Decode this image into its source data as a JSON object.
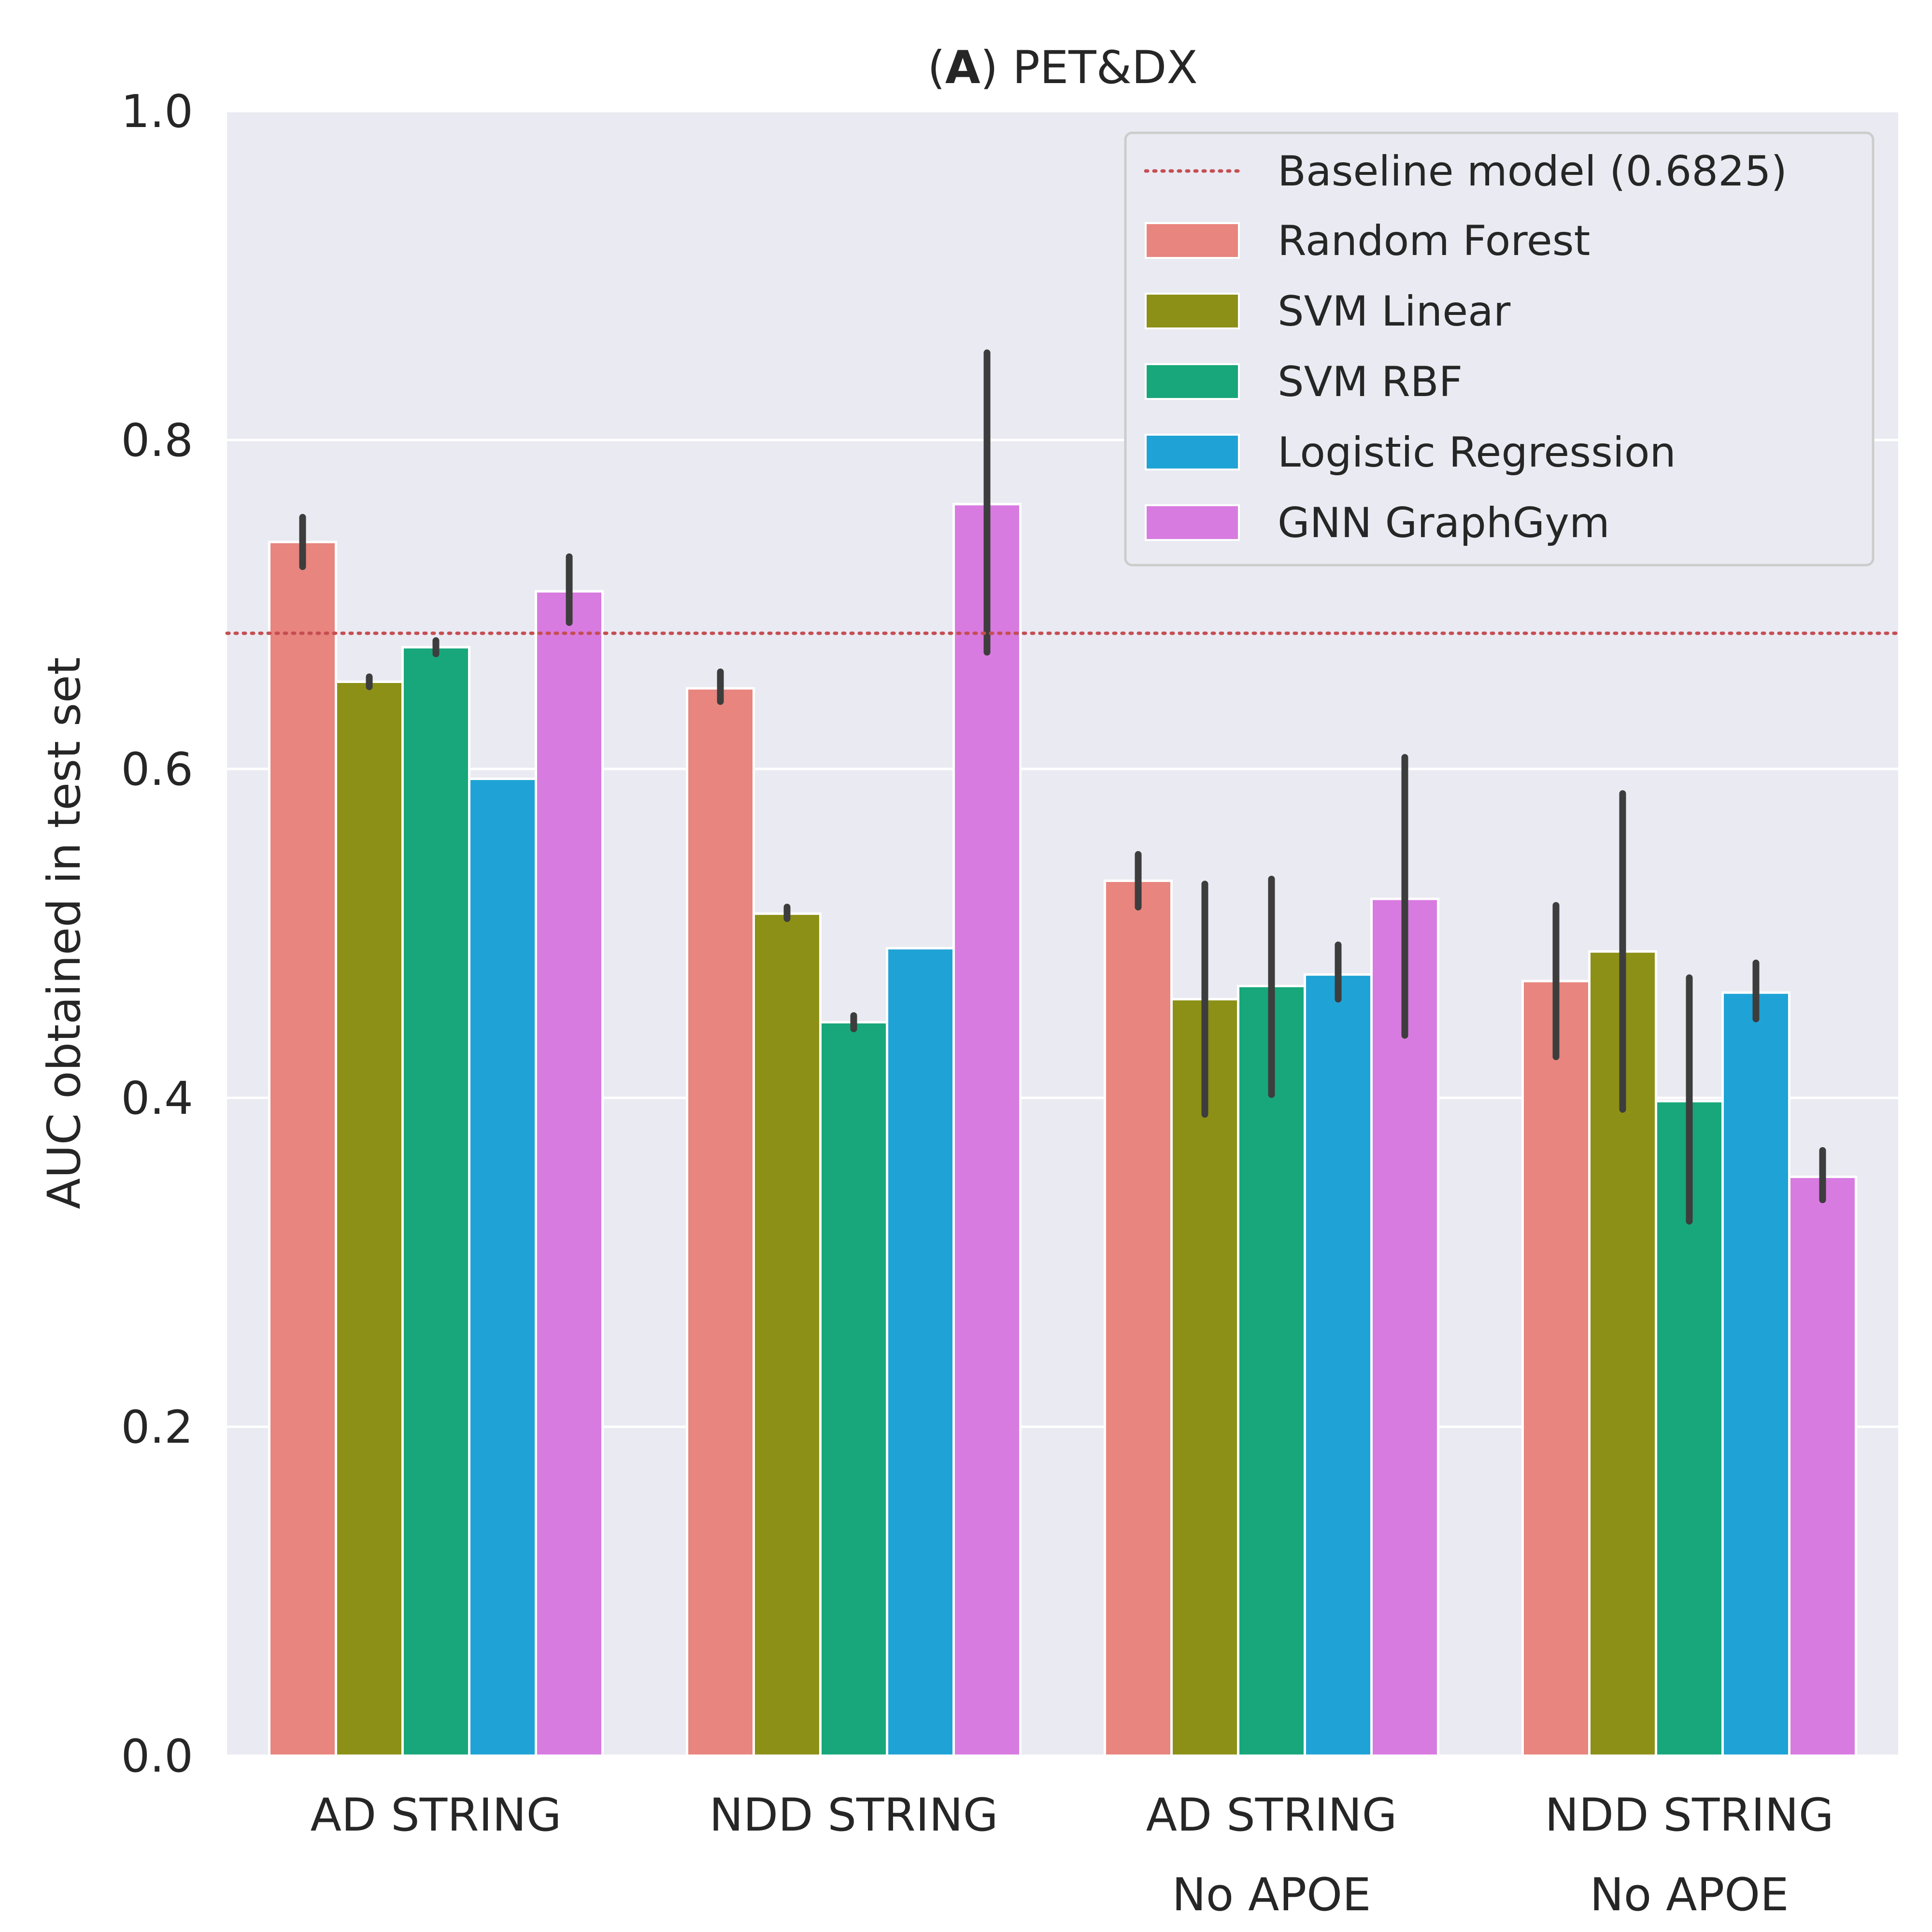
{
  "chart_data": {
    "type": "bar",
    "title_prefix": "(",
    "title_bold": "A",
    "title_suffix": ") PET&DX",
    "ylabel": "AUC obtained in test set",
    "xlabel": "",
    "ylim": [
      0,
      1.0
    ],
    "yticks": [
      "0.0",
      "0.2",
      "0.4",
      "0.6",
      "0.8",
      "1.0"
    ],
    "grid": true,
    "legend_position": "top-right",
    "baseline": {
      "label": "Baseline model (0.6825)",
      "value": 0.6825,
      "color": "#c44e52"
    },
    "categories": [
      [
        "AD STRING"
      ],
      [
        "NDD STRING"
      ],
      [
        "AD STRING",
        "No APOE"
      ],
      [
        "NDD STRING",
        "No APOE"
      ]
    ],
    "series": [
      {
        "name": "Random Forest",
        "color": "#e8857e",
        "values": [
          0.738,
          0.649,
          0.532,
          0.471
        ],
        "err": [
          [
            0.723,
            0.753
          ],
          [
            0.641,
            0.659
          ],
          [
            0.516,
            0.548
          ],
          [
            0.425,
            0.517
          ]
        ]
      },
      {
        "name": "SVM Linear",
        "color": "#8c9016",
        "values": [
          0.653,
          0.512,
          0.46,
          0.489
        ],
        "err": [
          [
            0.65,
            0.656
          ],
          [
            0.509,
            0.516
          ],
          [
            0.39,
            0.53
          ],
          [
            0.393,
            0.585
          ]
        ]
      },
      {
        "name": "SVM RBF",
        "color": "#17a77a",
        "values": [
          0.674,
          0.446,
          0.468,
          0.398
        ],
        "err": [
          [
            0.67,
            0.678
          ],
          [
            0.442,
            0.45
          ],
          [
            0.402,
            0.533
          ],
          [
            0.325,
            0.473
          ]
        ]
      },
      {
        "name": "Logistic Regression",
        "color": "#1fa3d6",
        "values": [
          0.594,
          0.491,
          0.475,
          0.464
        ],
        "err": null
      },
      {
        "name": "GNN GraphGym",
        "color": "#d87be0",
        "values": [
          0.708,
          0.761,
          0.521,
          0.352
        ],
        "err": [
          [
            0.689,
            0.729
          ],
          [
            0.671,
            0.853
          ],
          [
            0.438,
            0.607
          ],
          [
            0.338,
            0.368
          ]
        ]
      }
    ],
    "logistic_err": [
      null,
      null,
      [
        0.46,
        0.493
      ],
      [
        0.448,
        0.482
      ]
    ]
  }
}
